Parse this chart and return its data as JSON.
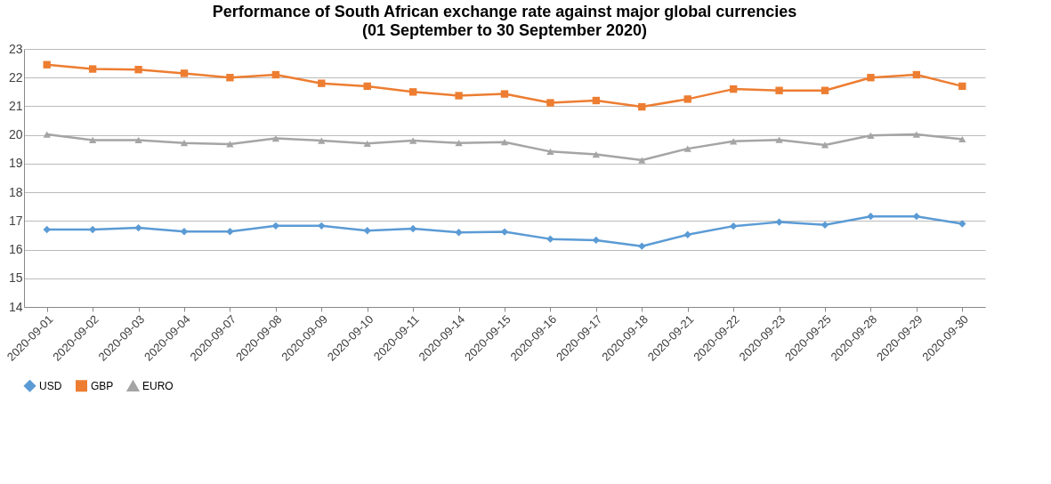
{
  "chart_data": {
    "type": "line",
    "title": "Performance of South African exchange rate against major global currencies",
    "subtitle": "(01 September to 30 September 2020)",
    "categories": [
      "2020-09-01",
      "2020-09-02",
      "2020-09-03",
      "2020-09-04",
      "2020-09-07",
      "2020-09-08",
      "2020-09-09",
      "2020-09-10",
      "2020-09-11",
      "2020-09-14",
      "2020-09-15",
      "2020-09-16",
      "2020-09-17",
      "2020-09-18",
      "2020-09-21",
      "2020-09-22",
      "2020-09-23",
      "2020-09-25",
      "2020-09-28",
      "2020-09-29",
      "2020-09-30"
    ],
    "series": [
      {
        "name": "USD",
        "color": "#5b9bd5",
        "marker": "diamond",
        "values": [
          16.7,
          16.7,
          16.76,
          16.63,
          16.63,
          16.83,
          16.83,
          16.66,
          16.73,
          16.6,
          16.62,
          16.37,
          16.33,
          16.12,
          16.52,
          16.82,
          16.96,
          16.86,
          17.16,
          17.16,
          16.9
        ]
      },
      {
        "name": "GBP",
        "color": "#ed7d31",
        "marker": "square",
        "values": [
          22.45,
          22.3,
          22.28,
          22.15,
          22.0,
          22.1,
          21.8,
          21.7,
          21.5,
          21.37,
          21.43,
          21.12,
          21.2,
          20.98,
          21.25,
          21.6,
          21.55,
          21.55,
          22.0,
          22.1,
          21.7
        ]
      },
      {
        "name": "EURO",
        "color": "#a5a5a5",
        "marker": "triangle",
        "values": [
          20.02,
          19.82,
          19.82,
          19.72,
          19.68,
          19.88,
          19.8,
          19.7,
          19.8,
          19.72,
          19.75,
          19.42,
          19.32,
          19.12,
          19.52,
          19.78,
          19.83,
          19.65,
          19.98,
          20.02,
          19.85
        ]
      }
    ],
    "ylim": [
      14,
      23
    ],
    "yticks": [
      14,
      15,
      16,
      17,
      18,
      19,
      20,
      21,
      22,
      23
    ],
    "grid": "y",
    "legend": "bottom",
    "line_style": "solid"
  }
}
